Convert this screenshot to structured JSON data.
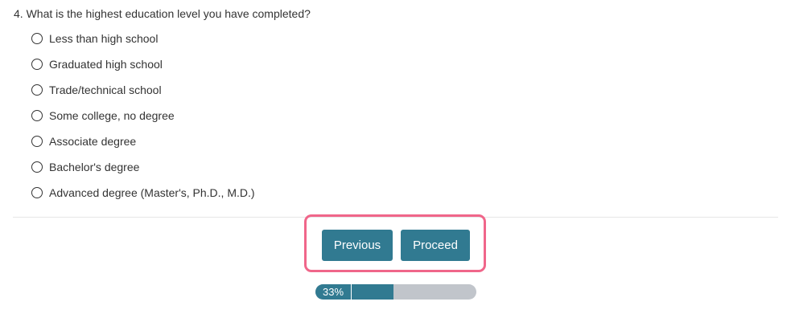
{
  "question": {
    "text": "4. What is the highest education level you have completed?",
    "options": [
      "Less than high school",
      "Graduated high school",
      "Trade/technical school",
      "Some college, no degree",
      "Associate degree",
      "Bachelor's degree",
      "Advanced degree (Master's, Ph.D., M.D.)"
    ],
    "selected": null
  },
  "nav": {
    "previous_label": "Previous",
    "proceed_label": "Proceed"
  },
  "progress": {
    "label": "33%",
    "percent": 33
  },
  "colors": {
    "button": "#317a91",
    "highlight": "#f0668a",
    "progress_track": "#c1c5cb"
  }
}
